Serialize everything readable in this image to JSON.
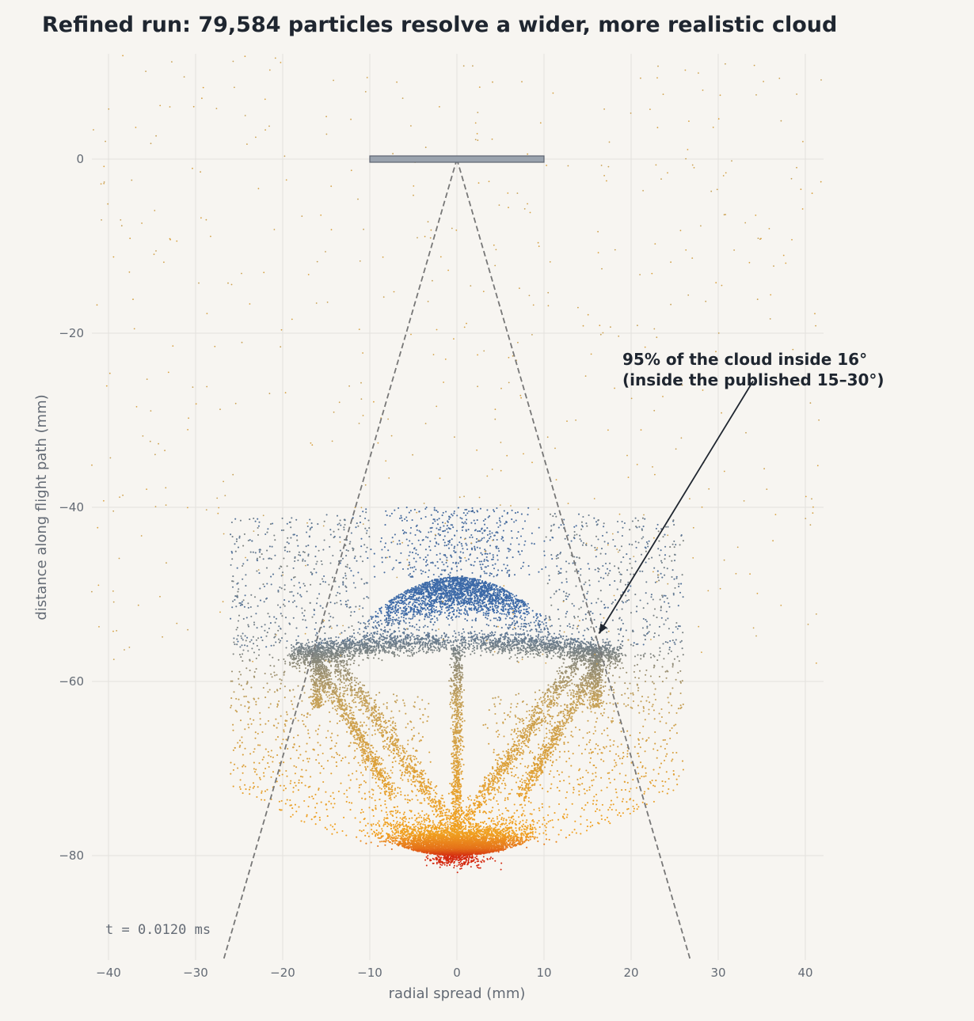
{
  "colors": {
    "background": "#f7f5f1",
    "grid": "#e3e1dd",
    "text": "#1f2630",
    "muted": "#646b75",
    "nozzle_fill": "#9aa3ae",
    "nozzle_stroke": "#5c6370",
    "cone": "#777777",
    "cloud_near": "#3d6aa8",
    "cloud_mid": "#c4a058",
    "cloud_far": "#f0a020",
    "cloud_tip": "#d42a10"
  },
  "chart_data": {
    "type": "scatter",
    "title": "Refined run: 79,584 particles resolve a wider, more realistic cloud",
    "xlabel": "radial spread  (mm)",
    "ylabel": "distance along flight path  (mm)",
    "xlim": [
      -42,
      42
    ],
    "ylim": [
      -92,
      12
    ],
    "xticks": [
      -40,
      -30,
      -20,
      -10,
      0,
      10,
      20,
      30,
      40
    ],
    "yticks": [
      0,
      -20,
      -40,
      -60,
      -80
    ],
    "grid": true,
    "particle_count": 79584,
    "nozzle": {
      "x0": -10,
      "x1": 10,
      "y": 0
    },
    "cone": {
      "apex": [
        0,
        0
      ],
      "left_end": [
        -26.8,
        -92
      ],
      "right_end": [
        26.8,
        -92
      ],
      "half_angle_deg": 16
    },
    "cloud_structure": {
      "front_y": -80,
      "wing_tip_radius": 16,
      "wing_y": -56,
      "canopy_top_y": -47,
      "halo_top_y": -40
    },
    "annotation": {
      "lines": [
        "95% of the cloud inside 16°",
        "(inside the published 15–30°)"
      ],
      "text_pos": [
        19,
        -22
      ],
      "arrow_tip": [
        16.3,
        -54.5
      ],
      "arrow_tail": [
        34,
        -25.5
      ]
    },
    "time_label": "t = 0.0120 ms"
  }
}
